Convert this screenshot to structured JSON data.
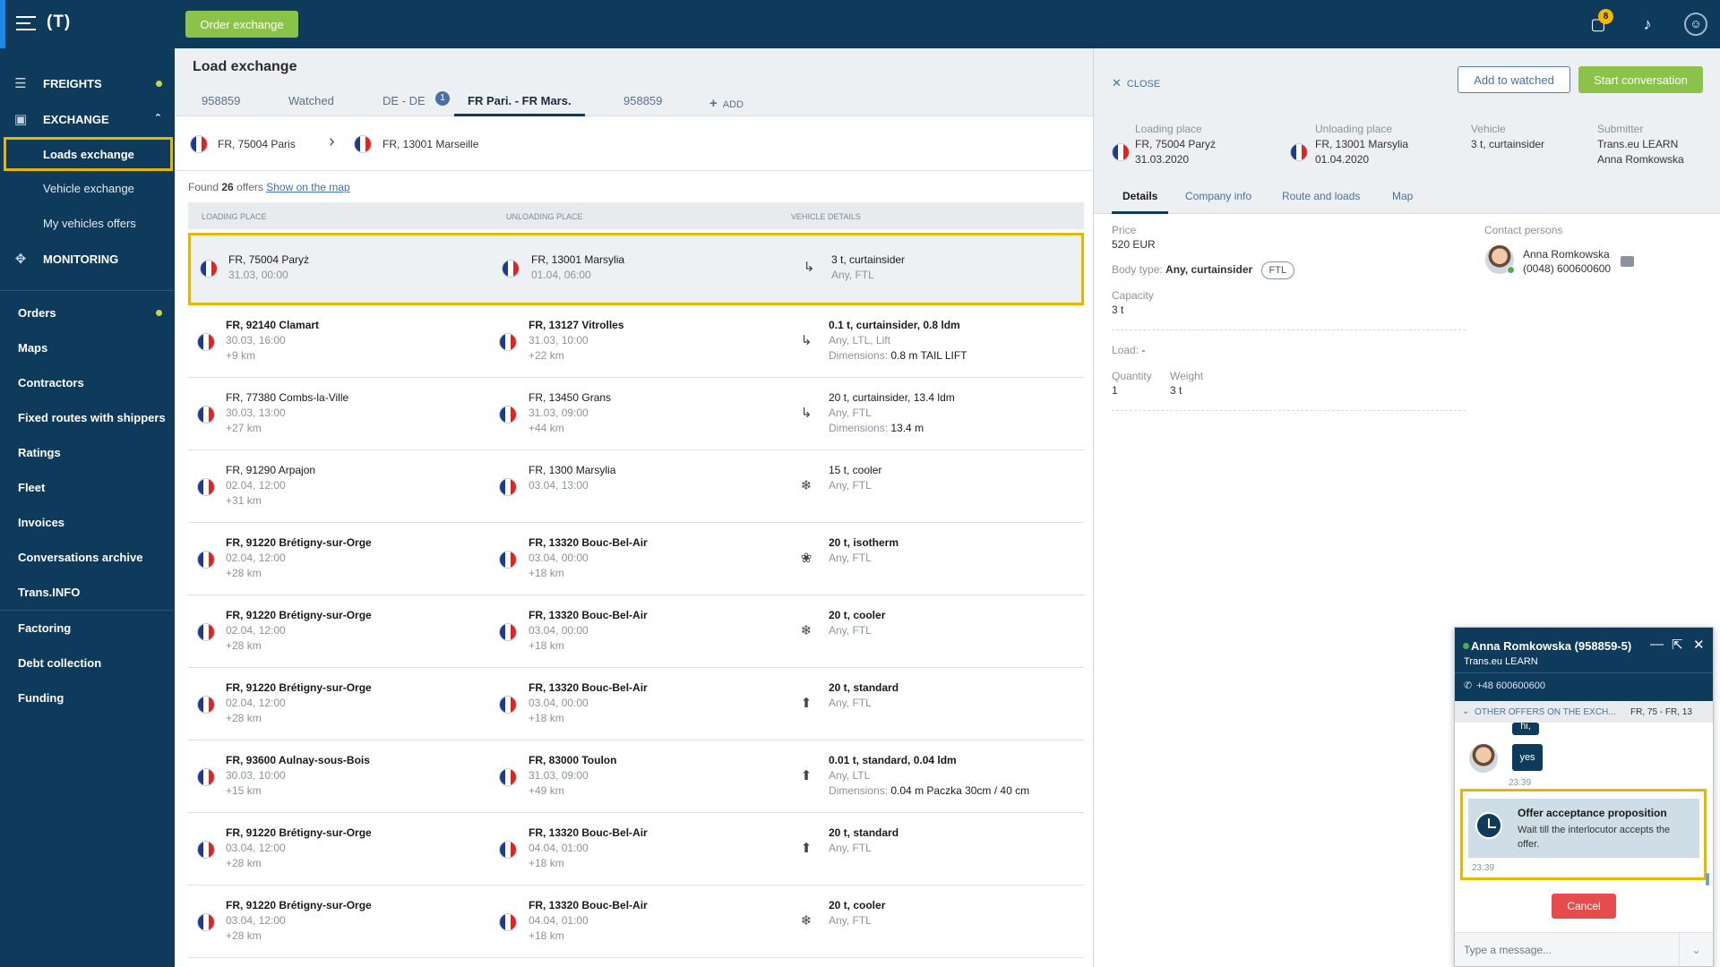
{
  "topbar": {
    "logo": "(T)",
    "order_button": "Order exchange",
    "messages_badge": "8"
  },
  "sidebar": {
    "freights": "FREIGHTS",
    "exchange": "EXCHANGE",
    "sub_items": [
      "Loads exchange",
      "Vehicle exchange",
      "My vehicles offers"
    ],
    "monitoring": "MONITORING",
    "items": [
      "Orders",
      "Maps",
      "Contractors",
      "Fixed routes with shippers",
      "Ratings",
      "Fleet",
      "Invoices",
      "Conversations archive",
      "Trans.INFO",
      "Factoring",
      "Debt collection",
      "Funding"
    ]
  },
  "main": {
    "title": "Load exchange",
    "tabs": [
      "958859",
      "Watched",
      "DE - DE",
      "FR Pari. - FR Mars.",
      "958859"
    ],
    "tab_badge": "1",
    "add_tab": "ADD",
    "route_from": "FR, 75004 Paris",
    "route_to": "FR, 13001 Marseille",
    "found_prefix": "Found",
    "found_count": "26",
    "found_suffix": "offers",
    "show_map": "Show on the map",
    "columns": [
      "LOADING PLACE",
      "UNLOADING PLACE",
      "VEHICLE DETAILS"
    ],
    "rows": [
      {
        "load": "FR, 75004 Paryż",
        "load_time": "31.03, 00:00",
        "load_km": "",
        "unload": "FR, 13001 Marsylia",
        "unload_time": "01.04, 06:00",
        "unload_km": "",
        "vehicle": "3 t, curtainsider",
        "vehicle_sub": "Any, FTL",
        "dims_label": "",
        "dims": "",
        "icon": "↳",
        "bold": false
      },
      {
        "load": "FR, 92140 Clamart",
        "load_time": "30.03, 16:00",
        "load_km": "+9 km",
        "unload": "FR, 13127 Vitrolles",
        "unload_time": "31.03, 10:00",
        "unload_km": "+22 km",
        "vehicle": "0.1 t, curtainsider, 0.8 ldm",
        "vehicle_sub": "Any, LTL, Lift",
        "dims_label": "Dimensions:",
        "dims": "0.8 m TAIL LIFT",
        "icon": "↳",
        "bold": true
      },
      {
        "load": "FR, 77380 Combs-la-Ville",
        "load_time": "30.03, 13:00",
        "load_km": "+27 km",
        "unload": "FR, 13450 Grans",
        "unload_time": "31.03, 09:00",
        "unload_km": "+44 km",
        "vehicle": "20 t, curtainsider, 13.4 ldm",
        "vehicle_sub": "Any, FTL",
        "dims_label": "Dimensions:",
        "dims": "13.4 m",
        "icon": "↳",
        "bold": false
      },
      {
        "load": "FR, 91290 Arpajon",
        "load_time": "02.04, 12:00",
        "load_km": "+31 km",
        "unload": "FR, 1300 Marsylia",
        "unload_time": "03.04, 13:00",
        "unload_km": "",
        "vehicle": "15 t, cooler",
        "vehicle_sub": "Any, FTL",
        "dims_label": "",
        "dims": "",
        "icon": "❄",
        "bold": false
      },
      {
        "load": "FR, 91220 Brétigny-sur-Orge",
        "load_time": "02.04, 12:00",
        "load_km": "+28 km",
        "unload": "FR, 13320 Bouc-Bel-Air",
        "unload_time": "03.04, 00:00",
        "unload_km": "+18 km",
        "vehicle": "20 t, isotherm",
        "vehicle_sub": "Any, FTL",
        "dims_label": "",
        "dims": "",
        "icon": "❀",
        "bold": true
      },
      {
        "load": "FR, 91220 Brétigny-sur-Orge",
        "load_time": "02.04, 12:00",
        "load_km": "+28 km",
        "unload": "FR, 13320 Bouc-Bel-Air",
        "unload_time": "03.04, 00:00",
        "unload_km": "+18 km",
        "vehicle": "20 t, cooler",
        "vehicle_sub": "Any, FTL",
        "dims_label": "",
        "dims": "",
        "icon": "❄",
        "bold": true
      },
      {
        "load": "FR, 91220 Brétigny-sur-Orge",
        "load_time": "02.04, 12:00",
        "load_km": "+28 km",
        "unload": "FR, 13320 Bouc-Bel-Air",
        "unload_time": "03.04, 00:00",
        "unload_km": "+18 km",
        "vehicle": "20 t, standard",
        "vehicle_sub": "Any, FTL",
        "dims_label": "",
        "dims": "",
        "icon": "⬆",
        "bold": true
      },
      {
        "load": "FR, 93600 Aulnay-sous-Bois",
        "load_time": "30.03, 10:00",
        "load_km": "+15 km",
        "unload": "FR, 83000 Toulon",
        "unload_time": "31.03, 09:00",
        "unload_km": "+49 km",
        "vehicle": "0.01 t, standard, 0.04 ldm",
        "vehicle_sub": "Any, LTL",
        "dims_label": "Dimensions:",
        "dims": "0.04 m Paczka 30cm / 40 cm",
        "icon": "⬆",
        "bold": true
      },
      {
        "load": "FR, 91220 Brétigny-sur-Orge",
        "load_time": "03.04, 12:00",
        "load_km": "+28 km",
        "unload": "FR, 13320 Bouc-Bel-Air",
        "unload_time": "04.04, 01:00",
        "unload_km": "+18 km",
        "vehicle": "20 t, standard",
        "vehicle_sub": "Any, FTL",
        "dims_label": "",
        "dims": "",
        "icon": "⬆",
        "bold": true
      },
      {
        "load": "FR, 91220 Brétigny-sur-Orge",
        "load_time": "03.04, 12:00",
        "load_km": "+28 km",
        "unload": "FR, 13320 Bouc-Bel-Air",
        "unload_time": "04.04, 01:00",
        "unload_km": "+18 km",
        "vehicle": "20 t, cooler",
        "vehicle_sub": "Any, FTL",
        "dims_label": "",
        "dims": "",
        "icon": "❄",
        "bold": true
      }
    ]
  },
  "detail": {
    "close": "CLOSE",
    "add_watched": "Add to watched",
    "start_conversation": "Start conversation",
    "loading_label": "Loading place",
    "loading_value": "FR, 75004 Paryż",
    "loading_date": "31.03.2020",
    "unloading_label": "Unloading place",
    "unloading_value": "FR, 13001 Marsylia",
    "unloading_date": "01.04.2020",
    "vehicle_label": "Vehicle",
    "vehicle_value": "3 t, curtainsider",
    "submitter_label": "Submitter",
    "submitter_company": "Trans.eu LEARN",
    "submitter_name": "Anna Romkowska",
    "tabs": [
      "Details",
      "Company info",
      "Route and loads",
      "Map"
    ],
    "price_label": "Price",
    "price_value": "520 EUR",
    "body_label": "Body type:",
    "body_value": "Any, curtainsider",
    "ftl": "FTL",
    "capacity_label": "Capacity",
    "capacity_value": "3 t",
    "load_label": "Load:",
    "load_value": "-",
    "quantity_label": "Quantity",
    "quantity_value": "1",
    "weight_label": "Weight",
    "weight_value": "3 t",
    "contact_label": "Contact persons",
    "contact_name": "Anna Romkowska",
    "contact_phone": "(0048) 600600600"
  },
  "chat": {
    "name": "Anna Romkowska (958859-5)",
    "company": "Trans.eu LEARN",
    "phone": "+48 600600600",
    "other_offers": "OTHER OFFERS ON THE EXCH...",
    "route_short": "FR, 75 - FR, 13",
    "msg_partial": "hi,",
    "msg_yes": "yes",
    "time1": "23:39",
    "offer_title": "Offer acceptance proposition",
    "offer_text": "Wait till the interlocutor accepts the offer.",
    "time2": "23:39",
    "cancel": "Cancel",
    "placeholder": "Type a message..."
  }
}
